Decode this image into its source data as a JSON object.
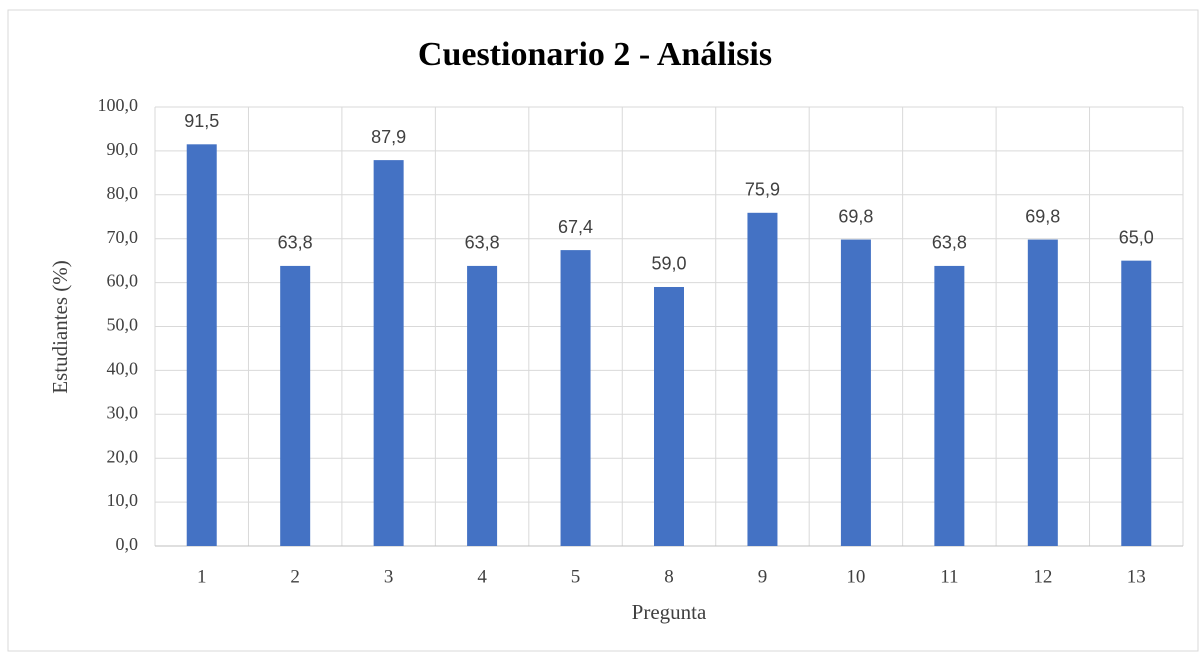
{
  "chart_data": {
    "type": "bar",
    "title": "Cuestionario 2 - Análisis",
    "categories": [
      "1",
      "2",
      "3",
      "4",
      "5",
      "8",
      "9",
      "10",
      "11",
      "12",
      "13"
    ],
    "values": [
      91.5,
      63.8,
      87.9,
      63.8,
      67.4,
      59.0,
      75.9,
      69.8,
      63.8,
      69.8,
      65.0
    ],
    "value_labels": [
      "91,5",
      "63,8",
      "87,9",
      "63,8",
      "67,4",
      "59,0",
      "75,9",
      "69,8",
      "63,8",
      "69,8",
      "65,0"
    ],
    "color": "#4472c4",
    "x_label": "Pregunta",
    "y_label": "Estudiantes (%)",
    "ylim": [
      0,
      100
    ],
    "yticks": [
      {
        "value": 0,
        "label": "0,0"
      },
      {
        "value": 10,
        "label": "10,0"
      },
      {
        "value": 20,
        "label": "20,0"
      },
      {
        "value": 30,
        "label": "30,0"
      },
      {
        "value": 40,
        "label": "40,0"
      },
      {
        "value": 50,
        "label": "50,0"
      },
      {
        "value": 60,
        "label": "60,0"
      },
      {
        "value": 70,
        "label": "70,0"
      },
      {
        "value": 80,
        "label": "80,0"
      },
      {
        "value": 90,
        "label": "90,0"
      },
      {
        "value": 100,
        "label": "100,0"
      }
    ],
    "grid": true
  }
}
